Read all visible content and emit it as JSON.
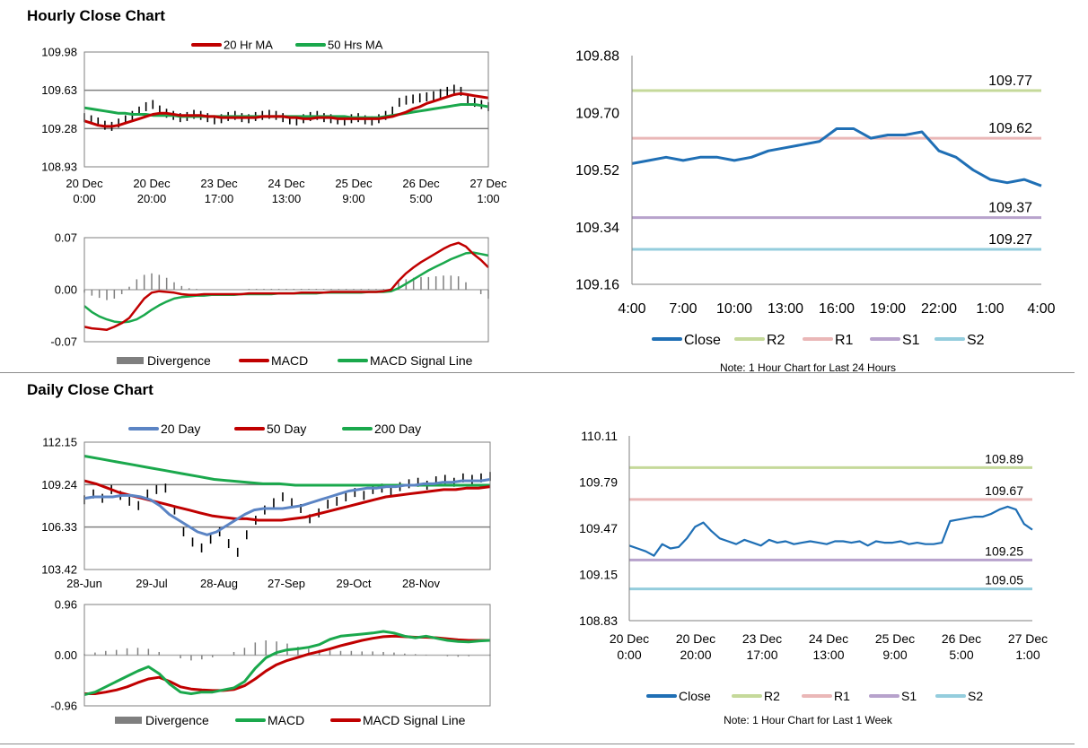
{
  "sections": {
    "hourly_title": "Hourly Close Chart",
    "daily_title": "Daily Close Chart"
  },
  "colors": {
    "close": "#1f6fb5",
    "ma20": "#c00000",
    "ma50": "#1aa84c",
    "ma20_day": "#5b84c4",
    "r2": "#c5d99a",
    "r1": "#eab7b7",
    "s1": "#b7a2cc",
    "s2": "#94cddd",
    "divergence": "#7f7f7f",
    "price": "#000000"
  },
  "chart_data": [
    {
      "id": "hourly_price",
      "type": "line",
      "title": "",
      "legend": [
        "20 Hr MA",
        "50 Hrs MA"
      ],
      "y_ticks": [
        "109.98",
        "109.63",
        "109.28",
        "108.93"
      ],
      "ylim": [
        108.93,
        109.98
      ],
      "x_labels": [
        [
          "20 Dec",
          "0:00"
        ],
        [
          "20 Dec",
          "20:00"
        ],
        [
          "23 Dec",
          "17:00"
        ],
        [
          "24 Dec",
          "13:00"
        ],
        [
          "25 Dec",
          "9:00"
        ],
        [
          "26 Dec",
          "5:00"
        ],
        [
          "27 Dec",
          "1:00"
        ]
      ],
      "series": [
        {
          "name": "Price",
          "values": [
            109.38,
            109.36,
            109.34,
            109.31,
            109.3,
            109.33,
            109.36,
            109.4,
            109.44,
            109.48,
            109.5,
            109.45,
            109.42,
            109.4,
            109.38,
            109.39,
            109.41,
            109.4,
            109.38,
            109.36,
            109.37,
            109.39,
            109.4,
            109.38,
            109.37,
            109.39,
            109.4,
            109.41,
            109.4,
            109.38,
            109.36,
            109.35,
            109.37,
            109.39,
            109.4,
            109.38,
            109.37,
            109.36,
            109.35,
            109.37,
            109.38,
            109.36,
            109.35,
            109.37,
            109.4,
            109.44,
            109.52,
            109.54,
            109.55,
            109.56,
            109.57,
            109.58,
            109.6,
            109.62,
            109.64,
            109.62,
            109.55,
            109.52,
            109.5,
            109.48
          ]
        },
        {
          "name": "20 Hr MA",
          "values": [
            109.35,
            109.33,
            109.31,
            109.3,
            109.3,
            109.31,
            109.33,
            109.35,
            109.37,
            109.39,
            109.41,
            109.42,
            109.42,
            109.41,
            109.4,
            109.4,
            109.4,
            109.4,
            109.39,
            109.39,
            109.38,
            109.38,
            109.38,
            109.38,
            109.38,
            109.38,
            109.39,
            109.39,
            109.39,
            109.39,
            109.38,
            109.38,
            109.37,
            109.37,
            109.38,
            109.38,
            109.38,
            109.37,
            109.37,
            109.37,
            109.37,
            109.37,
            109.37,
            109.37,
            109.38,
            109.39,
            109.41,
            109.43,
            109.46,
            109.48,
            109.51,
            109.53,
            109.55,
            109.57,
            109.59,
            109.6,
            109.59,
            109.58,
            109.57,
            109.56
          ]
        },
        {
          "name": "50 Hrs MA",
          "values": [
            109.47,
            109.46,
            109.45,
            109.44,
            109.43,
            109.42,
            109.42,
            109.41,
            109.41,
            109.41,
            109.4,
            109.4,
            109.4,
            109.4,
            109.39,
            109.39,
            109.39,
            109.39,
            109.39,
            109.39,
            109.39,
            109.39,
            109.39,
            109.39,
            109.39,
            109.39,
            109.39,
            109.39,
            109.39,
            109.39,
            109.39,
            109.39,
            109.39,
            109.39,
            109.39,
            109.39,
            109.39,
            109.39,
            109.39,
            109.38,
            109.38,
            109.38,
            109.38,
            109.38,
            109.39,
            109.4,
            109.41,
            109.42,
            109.43,
            109.44,
            109.45,
            109.46,
            109.47,
            109.48,
            109.49,
            109.5,
            109.5,
            109.5,
            109.49,
            109.48
          ]
        }
      ]
    },
    {
      "id": "hourly_macd",
      "type": "line",
      "y_ticks": [
        "0.07",
        "0.00",
        "-0.07"
      ],
      "ylim": [
        -0.07,
        0.07
      ],
      "legend": [
        "Divergence",
        "MACD",
        "MACD Signal Line"
      ],
      "series": [
        {
          "name": "MACD",
          "values": [
            -0.05,
            -0.052,
            -0.053,
            -0.054,
            -0.05,
            -0.045,
            -0.038,
            -0.025,
            -0.012,
            -0.004,
            -0.002,
            -0.003,
            -0.004,
            -0.006,
            -0.007,
            -0.007,
            -0.006,
            -0.006,
            -0.006,
            -0.006,
            -0.006,
            -0.006,
            -0.005,
            -0.005,
            -0.005,
            -0.005,
            -0.005,
            -0.005,
            -0.005,
            -0.004,
            -0.004,
            -0.004,
            -0.004,
            -0.003,
            -0.003,
            -0.003,
            -0.003,
            -0.003,
            -0.003,
            -0.003,
            -0.002,
            0.0,
            0.012,
            0.022,
            0.03,
            0.037,
            0.043,
            0.049,
            0.055,
            0.06,
            0.063,
            0.058,
            0.048,
            0.04,
            0.03
          ]
        },
        {
          "name": "MACD Signal Line",
          "values": [
            -0.022,
            -0.03,
            -0.036,
            -0.04,
            -0.043,
            -0.044,
            -0.043,
            -0.04,
            -0.034,
            -0.027,
            -0.021,
            -0.016,
            -0.012,
            -0.01,
            -0.009,
            -0.008,
            -0.008,
            -0.007,
            -0.007,
            -0.007,
            -0.007,
            -0.006,
            -0.006,
            -0.006,
            -0.006,
            -0.006,
            -0.005,
            -0.005,
            -0.005,
            -0.005,
            -0.005,
            -0.005,
            -0.004,
            -0.004,
            -0.004,
            -0.004,
            -0.004,
            -0.004,
            -0.003,
            -0.003,
            -0.003,
            -0.002,
            0.002,
            0.008,
            0.014,
            0.02,
            0.026,
            0.031,
            0.036,
            0.041,
            0.045,
            0.049,
            0.05,
            0.048,
            0.046
          ]
        },
        {
          "name": "Divergence",
          "values": [
            -0.004,
            -0.008,
            -0.011,
            -0.014,
            -0.012,
            -0.006,
            0.004,
            0.014,
            0.02,
            0.022,
            0.02,
            0.016,
            0.01,
            0.005,
            0.002,
            0.001,
            0.0,
            0.0,
            0.0,
            0.0,
            0.0,
            0.0,
            0.001,
            0.001,
            0.001,
            0.001,
            0.001,
            0.001,
            0.001,
            0.001,
            0.001,
            0.001,
            0.001,
            0.001,
            0.001,
            0.001,
            0.001,
            0.001,
            0.001,
            0.001,
            0.001,
            0.002,
            0.01,
            0.014,
            0.016,
            0.017,
            0.017,
            0.018,
            0.019,
            0.019,
            0.018,
            0.01,
            0.0,
            -0.006,
            -0.012
          ]
        }
      ]
    },
    {
      "id": "hourly_24h",
      "type": "line",
      "y_ticks": [
        "109.88",
        "109.70",
        "109.52",
        "109.34",
        "109.16"
      ],
      "ylim": [
        109.16,
        109.88
      ],
      "x_labels": [
        "4:00",
        "7:00",
        "10:00",
        "13:00",
        "16:00",
        "19:00",
        "22:00",
        "1:00",
        "4:00"
      ],
      "levels": [
        {
          "name": "R2",
          "value": 109.77,
          "label": "109.77"
        },
        {
          "name": "R1",
          "value": 109.62,
          "label": "109.62"
        },
        {
          "name": "S1",
          "value": 109.37,
          "label": "109.37"
        },
        {
          "name": "S2",
          "value": 109.27,
          "label": "109.27"
        }
      ],
      "series": [
        {
          "name": "Close",
          "values": [
            109.54,
            109.55,
            109.56,
            109.55,
            109.56,
            109.56,
            109.55,
            109.56,
            109.58,
            109.59,
            109.6,
            109.61,
            109.65,
            109.65,
            109.62,
            109.63,
            109.63,
            109.64,
            109.58,
            109.56,
            109.52,
            109.49,
            109.48,
            109.49,
            109.47
          ]
        }
      ],
      "legend": [
        "Close",
        "R2",
        "R1",
        "S1",
        "S2"
      ],
      "note": "Note: 1 Hour Chart for Last 24 Hours"
    },
    {
      "id": "daily_price",
      "type": "line",
      "legend": [
        "20 Day",
        "50 Day",
        "200 Day"
      ],
      "y_ticks": [
        "112.15",
        "109.24",
        "106.33",
        "103.42"
      ],
      "ylim": [
        103.42,
        112.15
      ],
      "x_labels": [
        "28-Jun",
        "29-Jul",
        "28-Aug",
        "27-Sep",
        "29-Oct",
        "28-Nov"
      ],
      "series": [
        {
          "name": "Price",
          "values": [
            108.2,
            108.6,
            108.3,
            108.9,
            108.5,
            108.1,
            107.8,
            108.6,
            108.9,
            109.0,
            107.5,
            106.0,
            105.3,
            104.9,
            105.5,
            106.0,
            105.2,
            104.6,
            105.8,
            106.8,
            107.5,
            108.0,
            108.4,
            108.0,
            107.6,
            106.9,
            107.3,
            107.9,
            108.1,
            108.4,
            108.7,
            108.5,
            108.9,
            109.0,
            108.8,
            109.1,
            109.3,
            109.4,
            109.2,
            109.5,
            109.6,
            109.4,
            109.7,
            109.6,
            109.7,
            109.8
          ]
        },
        {
          "name": "20 Day",
          "values": [
            108.3,
            108.4,
            108.4,
            108.4,
            108.5,
            108.5,
            108.4,
            108.2,
            107.8,
            107.2,
            106.8,
            106.4,
            106.0,
            105.8,
            106.0,
            106.4,
            106.8,
            107.2,
            107.5,
            107.6,
            107.6,
            107.6,
            107.7,
            107.8,
            108.0,
            108.2,
            108.4,
            108.6,
            108.8,
            108.9,
            109.0,
            109.0,
            109.1,
            109.1,
            109.2,
            109.2,
            109.3,
            109.3,
            109.4,
            109.4,
            109.5,
            109.5,
            109.5,
            109.6
          ]
        },
        {
          "name": "50 Day",
          "values": [
            109.5,
            109.3,
            109.0,
            108.7,
            108.5,
            108.3,
            108.1,
            107.9,
            107.7,
            107.5,
            107.3,
            107.1,
            107.0,
            106.9,
            106.9,
            106.8,
            106.8,
            106.8,
            106.9,
            107.0,
            107.2,
            107.4,
            107.6,
            107.8,
            108.0,
            108.2,
            108.4,
            108.5,
            108.6,
            108.7,
            108.8,
            108.9,
            108.9,
            109.0,
            109.0,
            109.1
          ]
        },
        {
          "name": "200 Day",
          "values": [
            111.2,
            111.0,
            110.8,
            110.6,
            110.4,
            110.2,
            110.0,
            109.8,
            109.6,
            109.5,
            109.4,
            109.3,
            109.3,
            109.2,
            109.2,
            109.2,
            109.2,
            109.2,
            109.2,
            109.2,
            109.2,
            109.2,
            109.2,
            109.2,
            109.2,
            109.2
          ]
        }
      ]
    },
    {
      "id": "daily_macd",
      "type": "line",
      "y_ticks": [
        "0.96",
        "0.00",
        "-0.96"
      ],
      "ylim": [
        -0.96,
        0.96
      ],
      "legend": [
        "Divergence",
        "MACD",
        "MACD Signal Line"
      ],
      "series": [
        {
          "name": "MACD",
          "values": [
            -0.75,
            -0.7,
            -0.6,
            -0.5,
            -0.4,
            -0.3,
            -0.22,
            -0.35,
            -0.55,
            -0.7,
            -0.73,
            -0.7,
            -0.7,
            -0.66,
            -0.62,
            -0.5,
            -0.25,
            -0.05,
            0.05,
            0.1,
            0.12,
            0.15,
            0.2,
            0.3,
            0.36,
            0.38,
            0.4,
            0.42,
            0.45,
            0.42,
            0.36,
            0.33,
            0.36,
            0.32,
            0.28,
            0.26,
            0.25,
            0.27,
            0.28
          ]
        },
        {
          "name": "MACD Signal Line",
          "values": [
            -0.73,
            -0.73,
            -0.7,
            -0.66,
            -0.6,
            -0.52,
            -0.45,
            -0.42,
            -0.5,
            -0.6,
            -0.64,
            -0.66,
            -0.67,
            -0.67,
            -0.65,
            -0.58,
            -0.45,
            -0.3,
            -0.18,
            -0.1,
            -0.04,
            0.02,
            0.07,
            0.12,
            0.18,
            0.23,
            0.28,
            0.32,
            0.35,
            0.36,
            0.35,
            0.34,
            0.34,
            0.33,
            0.31,
            0.29,
            0.28,
            0.28,
            0.28
          ]
        },
        {
          "name": "Divergence",
          "values": [
            0.02,
            0.05,
            0.08,
            0.1,
            0.13,
            0.14,
            0.12,
            0.06,
            0.0,
            -0.06,
            -0.1,
            -0.08,
            -0.04,
            0.0,
            0.06,
            0.14,
            0.24,
            0.28,
            0.26,
            0.22,
            0.16,
            0.12,
            0.1,
            0.09,
            0.08,
            0.08,
            0.07,
            0.07,
            0.06,
            0.05,
            0.03,
            0.02,
            0.01,
            0.0,
            -0.02,
            -0.03,
            -0.02,
            0.0,
            0.01
          ]
        }
      ]
    },
    {
      "id": "hourly_1week",
      "type": "line",
      "y_ticks": [
        "110.11",
        "109.79",
        "109.47",
        "109.15",
        "108.83"
      ],
      "ylim": [
        108.83,
        110.11
      ],
      "x_labels": [
        [
          "20 Dec",
          "0:00"
        ],
        [
          "20 Dec",
          "20:00"
        ],
        [
          "23 Dec",
          "17:00"
        ],
        [
          "24 Dec",
          "13:00"
        ],
        [
          "25 Dec",
          "9:00"
        ],
        [
          "26 Dec",
          "5:00"
        ],
        [
          "27 Dec",
          "1:00"
        ]
      ],
      "levels": [
        {
          "name": "R2",
          "value": 109.89,
          "label": "109.89"
        },
        {
          "name": "R1",
          "value": 109.67,
          "label": "109.67"
        },
        {
          "name": "S1",
          "value": 109.25,
          "label": "109.25"
        },
        {
          "name": "S2",
          "value": 109.05,
          "label": "109.05"
        }
      ],
      "series": [
        {
          "name": "Close",
          "values": [
            109.35,
            109.33,
            109.31,
            109.28,
            109.36,
            109.33,
            109.34,
            109.4,
            109.48,
            109.51,
            109.45,
            109.4,
            109.38,
            109.36,
            109.39,
            109.37,
            109.35,
            109.39,
            109.37,
            109.38,
            109.36,
            109.37,
            109.38,
            109.37,
            109.36,
            109.38,
            109.38,
            109.37,
            109.38,
            109.35,
            109.38,
            109.37,
            109.37,
            109.38,
            109.36,
            109.37,
            109.36,
            109.36,
            109.37,
            109.52,
            109.53,
            109.54,
            109.55,
            109.55,
            109.57,
            109.6,
            109.62,
            109.6,
            109.5,
            109.46
          ]
        }
      ],
      "legend": [
        "Close",
        "R2",
        "R1",
        "S1",
        "S2"
      ],
      "note": "Note: 1 Hour Chart for Last 1 Week"
    }
  ]
}
